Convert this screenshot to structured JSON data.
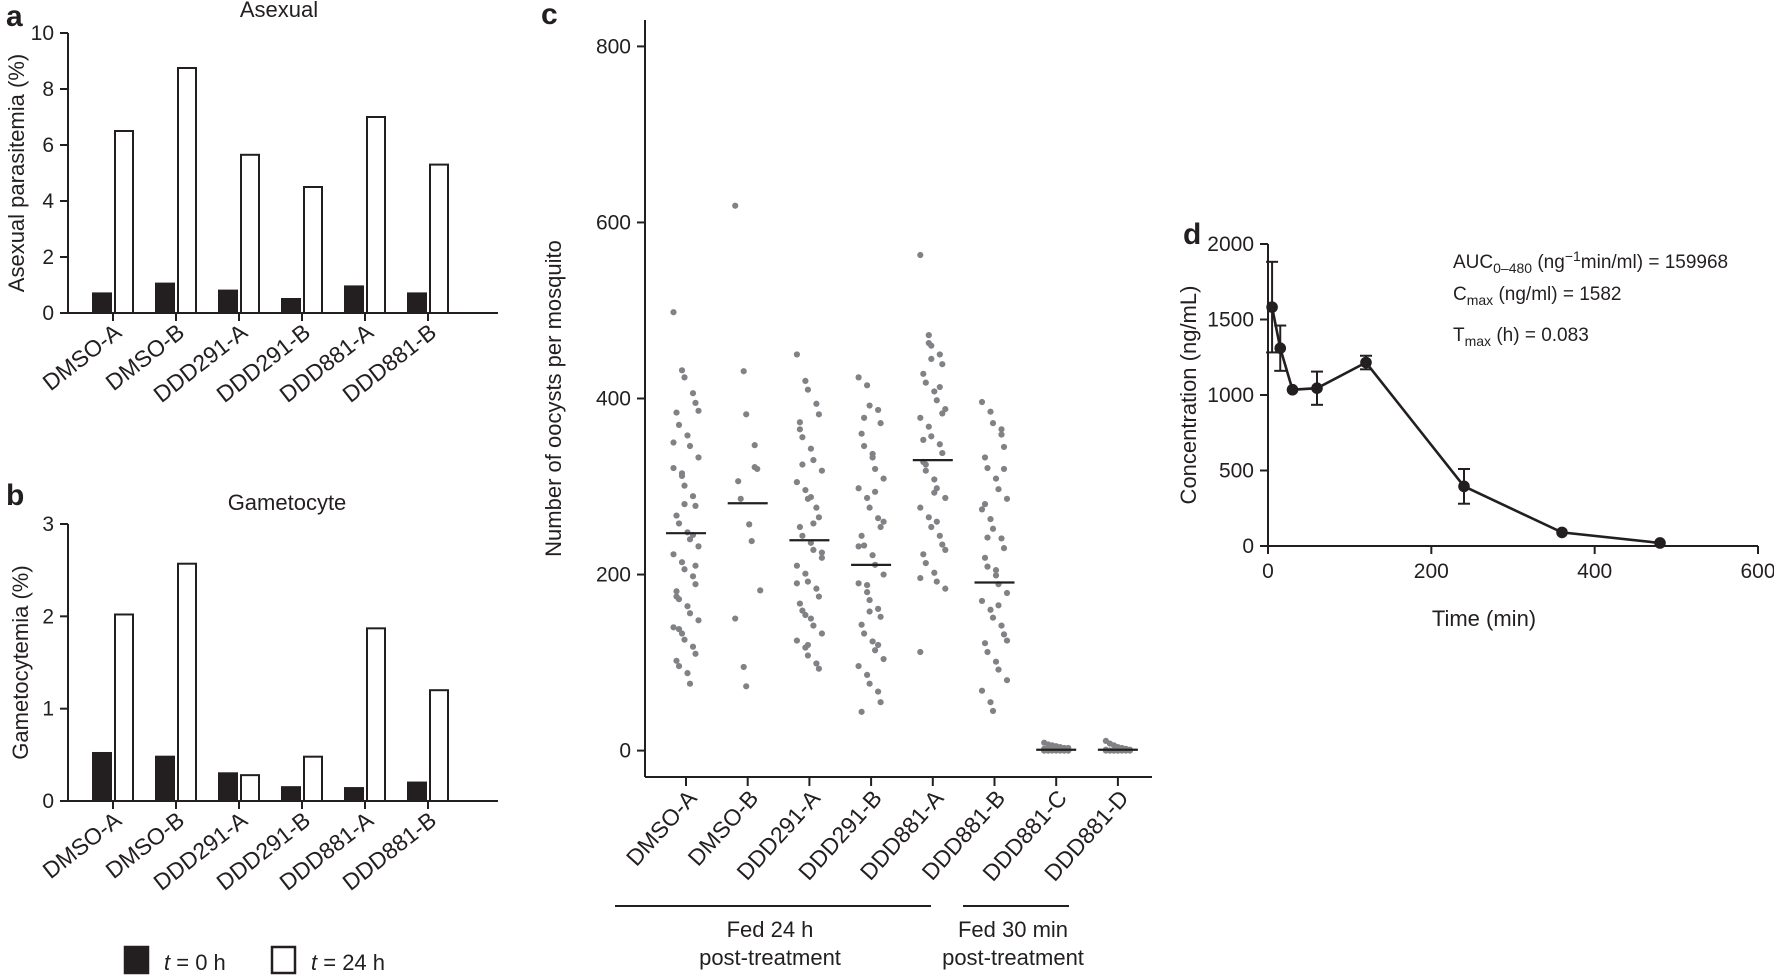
{
  "chart_data": [
    {
      "panel": "a",
      "type": "bar",
      "title": "Asexual",
      "ylabel": "Asexual parasitemia (%)",
      "xlabel": "",
      "ylim": [
        0,
        10
      ],
      "yticks": [
        "0",
        "2",
        "4",
        "6",
        "8",
        "10"
      ],
      "categories": [
        "DMSO-A",
        "DMSO-B",
        "DDD291-A",
        "DDD291-B",
        "DDD881-A",
        "DDD881-B"
      ],
      "series": [
        {
          "name": "t = 0 h",
          "fill": "#231f20",
          "values": [
            0.7,
            1.05,
            0.8,
            0.5,
            0.95,
            0.7
          ]
        },
        {
          "name": "t = 24 h",
          "fill": "#ffffff",
          "values": [
            6.5,
            8.75,
            5.65,
            4.5,
            7.0,
            5.3
          ]
        }
      ]
    },
    {
      "panel": "b",
      "type": "bar",
      "title": "Gametocyte",
      "ylabel": "Gametocytemia (%)",
      "xlabel": "",
      "ylim": [
        0,
        3
      ],
      "yticks": [
        "0",
        "1",
        "2",
        "3"
      ],
      "categories": [
        "DMSO-A",
        "DMSO-B",
        "DDD291-A",
        "DDD291-B",
        "DDD881-A",
        "DDD881-B"
      ],
      "series": [
        {
          "name": "t = 0 h",
          "fill": "#231f20",
          "values": [
            0.52,
            0.48,
            0.3,
            0.15,
            0.14,
            0.2
          ]
        },
        {
          "name": "t = 24 h",
          "fill": "#ffffff",
          "values": [
            2.02,
            2.57,
            0.28,
            0.48,
            1.87,
            1.2
          ]
        }
      ]
    },
    {
      "panel": "c",
      "type": "scatter",
      "title": "",
      "ylabel": "Number of oocysts per mosquito",
      "xlabel": "",
      "ylim": [
        -30,
        830
      ],
      "yticks": [
        "0",
        "200",
        "400",
        "600",
        "800"
      ],
      "categories": [
        "DMSO-A",
        "DMSO-B",
        "DDD291-A",
        "DDD291-B",
        "DDD881-A",
        "DDD881-B",
        "DDD881-C",
        "DDD881-D"
      ],
      "medians": [
        247,
        281,
        239,
        211,
        330,
        191,
        1,
        1
      ],
      "points": [
        [
          498,
          432,
          424,
          406,
          395,
          384,
          370,
          358,
          346,
          333,
          321,
          312,
          301,
          289,
          278,
          267,
          258,
          248,
          240,
          232,
          223,
          214,
          206,
          198,
          189,
          181,
          172,
          164,
          156,
          148,
          140,
          133,
          126,
          118,
          110,
          102,
          96,
          88,
          76,
          386,
          350,
          315,
          280,
          245,
          210,
          175,
          138
        ],
        [
          619,
          431,
          382,
          347,
          320,
          306,
          286,
          257,
          238,
          182,
          150,
          95,
          73,
          322
        ],
        [
          450,
          420,
          410,
          394,
          382,
          373,
          356,
          343,
          330,
          318,
          305,
          296,
          286,
          276,
          265,
          254,
          244,
          236,
          228,
          219,
          210,
          201,
          192,
          184,
          175,
          167,
          159,
          150,
          142,
          133,
          125,
          117,
          108,
          99,
          93,
          365,
          325,
          288,
          258,
          225,
          190,
          154,
          120
        ],
        [
          424,
          415,
          392,
          387,
          372,
          360,
          346,
          333,
          320,
          309,
          298,
          287,
          276,
          264,
          254,
          244,
          233,
          222,
          211,
          200,
          190,
          180,
          171,
          161,
          152,
          143,
          133,
          124,
          114,
          104,
          96,
          86,
          76,
          67,
          55,
          44,
          378,
          337,
          294,
          260,
          232,
          188,
          158,
          120
        ],
        [
          563,
          472,
          460,
          450,
          439,
          428,
          418,
          408,
          398,
          388,
          378,
          368,
          357,
          348,
          338,
          328,
          318,
          308,
          298,
          287,
          276,
          265,
          254,
          244,
          234,
          223,
          213,
          202,
          192,
          184,
          112,
          463,
          445,
          413,
          383,
          353,
          325,
          293,
          260,
          228,
          196
        ],
        [
          396,
          385,
          372,
          359,
          345,
          333,
          321,
          309,
          297,
          286,
          274,
          263,
          252,
          241,
          230,
          219,
          209,
          199,
          189,
          179,
          170,
          160,
          151,
          142,
          132,
          122,
          112,
          101,
          92,
          80,
          68,
          55,
          45,
          365,
          320,
          280,
          242,
          205,
          165,
          125
        ],
        [
          9,
          7,
          6,
          5,
          4,
          3,
          3,
          2,
          2,
          1,
          1,
          1,
          0,
          0,
          0,
          0,
          0,
          0,
          0,
          0,
          0,
          0,
          0
        ],
        [
          11,
          8,
          6,
          4,
          3,
          2,
          1,
          1,
          0,
          0,
          0,
          0,
          0,
          0,
          0,
          0,
          0,
          0
        ]
      ],
      "groups": [
        {
          "label": "Fed 24 h post-treatment",
          "line1": "Fed 24 h",
          "line2": "post-treatment",
          "from": 0,
          "to": 4
        },
        {
          "label": "Fed 30 min post-treatment",
          "line1": "Fed 30 min",
          "line2": "post-treatment",
          "from": 5,
          "to": 7
        }
      ]
    },
    {
      "panel": "d",
      "type": "line",
      "title": "",
      "xlabel": "Time (min)",
      "ylabel": "Concentration (ng/mL)",
      "xlim": [
        0,
        600
      ],
      "ylim": [
        0,
        2000
      ],
      "xticks": [
        "0",
        "200",
        "400",
        "600"
      ],
      "yticks": [
        "0",
        "500",
        "1000",
        "1500",
        "2000"
      ],
      "series": [
        {
          "name": "Concentration",
          "x": [
            5,
            15,
            30,
            60,
            120,
            240,
            360,
            480
          ],
          "y": [
            1582,
            1310,
            1035,
            1045,
            1215,
            395,
            90,
            20
          ],
          "err": [
            300,
            150,
            0,
            110,
            45,
            115,
            0,
            0
          ]
        }
      ],
      "annotations": [
        {
          "main": "AUC",
          "sub": "0–480",
          "rest_a": " (ng",
          "sup": "−1",
          "rest_b": "min/ml) = 159968"
        },
        {
          "main": "C",
          "sub": "max",
          "rest_a": " (ng/ml) = 1582",
          "sup": "",
          "rest_b": ""
        },
        {
          "main": "T",
          "sub": "max",
          "rest_a": " (h) = 0.083",
          "sup": "",
          "rest_b": ""
        }
      ]
    }
  ],
  "legend": {
    "items": [
      {
        "italic": "t",
        "rest": " = 0 h",
        "fill": "#231f20"
      },
      {
        "italic": "t",
        "rest": " = 24 h",
        "fill": "#ffffff"
      }
    ]
  },
  "colors": {
    "ink": "#231f20",
    "dots": "#808285",
    "paper": "#ffffff"
  }
}
